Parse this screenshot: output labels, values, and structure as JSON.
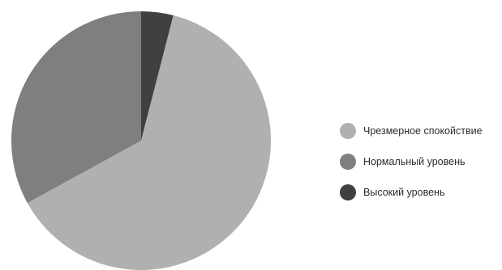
{
  "chart_data": {
    "type": "pie",
    "title": "",
    "categories": [
      "Чрезмерное спокойствие",
      "Нормальный уровень",
      "Высокий уровень"
    ],
    "values": [
      63,
      33,
      4
    ],
    "colors": [
      "#b0b0b0",
      "#7f7f7f",
      "#404040"
    ],
    "start_category": "Высокий уровень",
    "direction": "clockwise",
    "legend_position": "right"
  }
}
